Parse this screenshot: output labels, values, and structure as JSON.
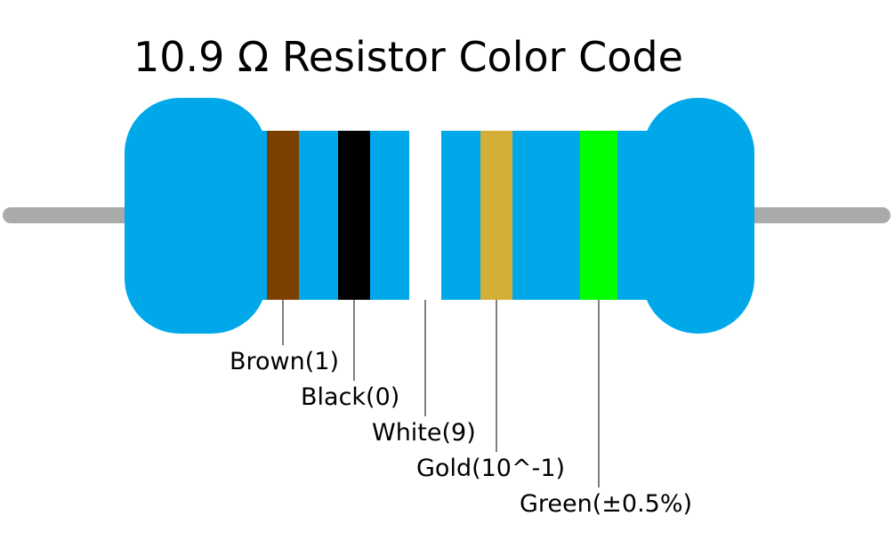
{
  "title": "10.9 Ω Resistor Color Code",
  "bands": [
    {
      "label": "Brown(1)"
    },
    {
      "label": "Black(0)"
    },
    {
      "label": "White(9)"
    },
    {
      "label": "Gold(10^-1)"
    },
    {
      "label": "Green(±0.5%)"
    }
  ]
}
